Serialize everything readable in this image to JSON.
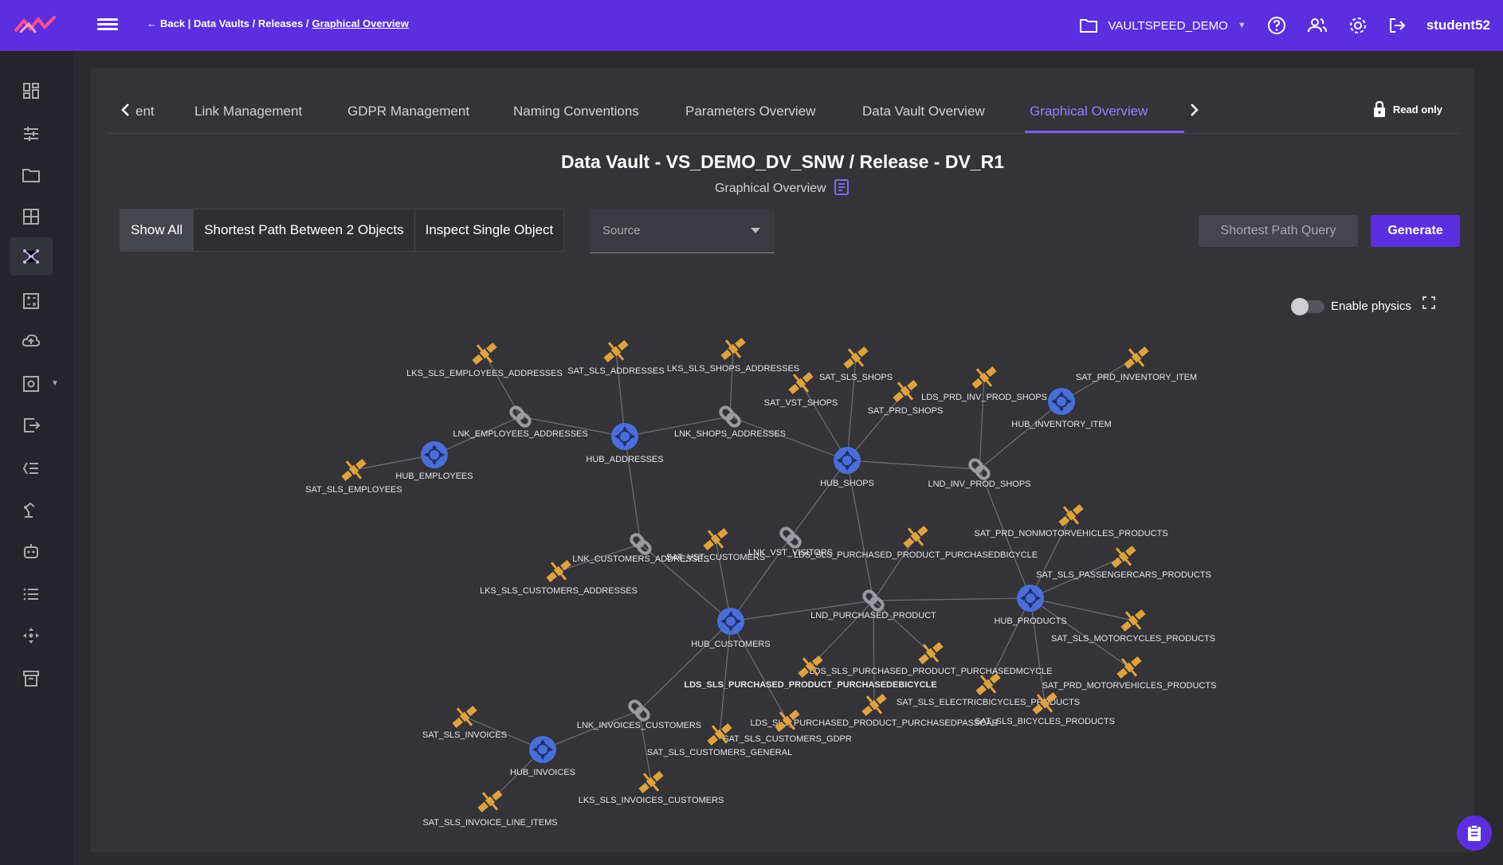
{
  "header": {
    "back_label": "Back | Data Vaults / Releases / ",
    "current_crumb": "Graphical Overview",
    "workspace": "VAULTSPEED_DEMO",
    "username": "student52"
  },
  "sidebar": {
    "items": [
      "dashboard-icon",
      "sliders-icon",
      "folder-icon",
      "grid-icon",
      "graph-icon",
      "calculator-icon",
      "cloud-upload-icon",
      "settings-box-icon",
      "export-icon",
      "list-filter-icon",
      "robot-arm-icon",
      "robot-icon",
      "list-icon",
      "move-icon",
      "archive-icon"
    ]
  },
  "tabs": {
    "items": [
      "ent",
      "Link Management",
      "GDPR Management",
      "Naming Conventions",
      "Parameters Overview",
      "Data Vault Overview",
      "Graphical Overview"
    ],
    "active": "Graphical Overview",
    "read_only": "Read only"
  },
  "main": {
    "title": "Data Vault - VS_DEMO_DV_SNW / Release - DV_R1",
    "subtitle": "Graphical Overview",
    "modes": [
      "Show All",
      "Shortest Path Between 2 Objects",
      "Inspect Single Object"
    ],
    "active_mode": "Show All",
    "source_label": "Source",
    "shortest_path_button": "Shortest Path Query",
    "generate_button": "Generate",
    "physics_label": "Enable physics",
    "physics_enabled": false
  },
  "graph": {
    "nodes": [
      {
        "id": "HUB_EMPLOYEES",
        "type": "hub"
      },
      {
        "id": "HUB_ADDRESSES",
        "type": "hub"
      },
      {
        "id": "HUB_SHOPS",
        "type": "hub"
      },
      {
        "id": "HUB_INVENTORY_ITEM",
        "type": "hub"
      },
      {
        "id": "HUB_CUSTOMERS",
        "type": "hub"
      },
      {
        "id": "HUB_PRODUCTS",
        "type": "hub"
      },
      {
        "id": "HUB_INVOICES",
        "type": "hub"
      },
      {
        "id": "LNK_EMPLOYEES_ADDRESSES",
        "type": "link"
      },
      {
        "id": "LNK_SHOPS_ADDRESSES",
        "type": "link"
      },
      {
        "id": "LND_INV_PROD_SHOPS",
        "type": "link"
      },
      {
        "id": "LNK_CUSTOMERS_ADDRESSES",
        "type": "link"
      },
      {
        "id": "LNK_VST_VISITORS",
        "type": "link"
      },
      {
        "id": "LND_PURCHASED_PRODUCT",
        "type": "link"
      },
      {
        "id": "LNK_INVOICES_CUSTOMERS",
        "type": "link"
      },
      {
        "id": "LKS_SLS_EMPLOYEES_ADDRESSES",
        "type": "sat"
      },
      {
        "id": "SAT_SLS_ADDRESSES",
        "type": "sat"
      },
      {
        "id": "LKS_SLS_SHOPS_ADDRESSES",
        "type": "sat"
      },
      {
        "id": "SAT_VST_SHOPS",
        "type": "sat"
      },
      {
        "id": "SAT_SLS_SHOPS",
        "type": "sat"
      },
      {
        "id": "SAT_PRD_SHOPS",
        "type": "sat"
      },
      {
        "id": "LDS_PRD_INV_PROD_SHOPS",
        "type": "sat"
      },
      {
        "id": "SAT_PRD_INVENTORY_ITEM",
        "type": "sat"
      },
      {
        "id": "SAT_SLS_EMPLOYEES",
        "type": "sat"
      },
      {
        "id": "SAT_VST_CUSTOMERS",
        "type": "sat"
      },
      {
        "id": "LDS_SLS_PURCHASED_PRODUCT_PURCHASEDBICYCLE",
        "type": "sat"
      },
      {
        "id": "SAT_PRD_NONMOTORVEHICLES_PRODUCTS",
        "type": "sat"
      },
      {
        "id": "SAT_SLS_PASSENGERCARS_PRODUCTS",
        "type": "sat"
      },
      {
        "id": "LKS_SLS_CUSTOMERS_ADDRESSES",
        "type": "sat"
      },
      {
        "id": "SAT_SLS_MOTORCYCLES_PRODUCTS",
        "type": "sat"
      },
      {
        "id": "LDS_SLS_PURCHASED_PRODUCT_PURCHASEDMCYCLE",
        "type": "sat"
      },
      {
        "id": "LDS_SLS_PURCHASED_PRODUCT_PURCHASEDEBICYCLE",
        "type": "sat",
        "bold": true
      },
      {
        "id": "SAT_PRD_MOTORVEHICLES_PRODUCTS",
        "type": "sat"
      },
      {
        "id": "SAT_SLS_ELECTRICBICYCLES_PRODUCTS",
        "type": "sat"
      },
      {
        "id": "SAT_SLS_INVOICES",
        "type": "sat"
      },
      {
        "id": "LDS_SLS_PURCHASED_PRODUCT_PURCHASEDPASSCAR",
        "label": "LDS_SLS_PURCHASED_PRODUCT_PURCHASEDPASSCAR",
        "type": "sat"
      },
      {
        "id": "SAT_SLS_BICYCLES_PRODUCTS",
        "type": "sat"
      },
      {
        "id": "SAT_SLS_CUSTOMERS_GDPR",
        "type": "sat"
      },
      {
        "id": "SAT_SLS_CUSTOMERS_GENERAL",
        "type": "sat"
      },
      {
        "id": "LKS_SLS_INVOICES_CUSTOMERS",
        "type": "sat"
      },
      {
        "id": "SAT_SLS_INVOICE_LINE_ITEMS",
        "type": "sat"
      }
    ],
    "edges": [
      [
        "LKS_SLS_EMPLOYEES_ADDRESSES",
        "LNK_EMPLOYEES_ADDRESSES"
      ],
      [
        "LNK_EMPLOYEES_ADDRESSES",
        "HUB_EMPLOYEES"
      ],
      [
        "LNK_EMPLOYEES_ADDRESSES",
        "HUB_ADDRESSES"
      ],
      [
        "SAT_SLS_EMPLOYEES",
        "HUB_EMPLOYEES"
      ],
      [
        "SAT_SLS_ADDRESSES",
        "HUB_ADDRESSES"
      ],
      [
        "HUB_ADDRESSES",
        "LNK_SHOPS_ADDRESSES"
      ],
      [
        "LKS_SLS_SHOPS_ADDRESSES",
        "LNK_SHOPS_ADDRESSES"
      ],
      [
        "LNK_SHOPS_ADDRESSES",
        "HUB_SHOPS"
      ],
      [
        "SAT_VST_SHOPS",
        "HUB_SHOPS"
      ],
      [
        "SAT_SLS_SHOPS",
        "HUB_SHOPS"
      ],
      [
        "SAT_PRD_SHOPS",
        "HUB_SHOPS"
      ],
      [
        "HUB_SHOPS",
        "LND_INV_PROD_SHOPS"
      ],
      [
        "LDS_PRD_INV_PROD_SHOPS",
        "LND_INV_PROD_SHOPS"
      ],
      [
        "LND_INV_PROD_SHOPS",
        "HUB_INVENTORY_ITEM"
      ],
      [
        "SAT_PRD_INVENTORY_ITEM",
        "HUB_INVENTORY_ITEM"
      ],
      [
        "LND_INV_PROD_SHOPS",
        "HUB_PRODUCTS"
      ],
      [
        "HUB_ADDRESSES",
        "LNK_CUSTOMERS_ADDRESSES"
      ],
      [
        "LKS_SLS_CUSTOMERS_ADDRESSES",
        "LNK_CUSTOMERS_ADDRESSES"
      ],
      [
        "LNK_CUSTOMERS_ADDRESSES",
        "HUB_CUSTOMERS"
      ],
      [
        "SAT_VST_CUSTOMERS",
        "HUB_CUSTOMERS"
      ],
      [
        "HUB_SHOPS",
        "LNK_VST_VISITORS"
      ],
      [
        "LNK_VST_VISITORS",
        "HUB_CUSTOMERS"
      ],
      [
        "HUB_SHOPS",
        "LND_PURCHASED_PRODUCT"
      ],
      [
        "HUB_CUSTOMERS",
        "LND_PURCHASED_PRODUCT"
      ],
      [
        "LND_PURCHASED_PRODUCT",
        "HUB_PRODUCTS"
      ],
      [
        "LDS_SLS_PURCHASED_PRODUCT_PURCHASEDBICYCLE",
        "LND_PURCHASED_PRODUCT"
      ],
      [
        "LDS_SLS_PURCHASED_PRODUCT_PURCHASEDMCYCLE",
        "LND_PURCHASED_PRODUCT"
      ],
      [
        "LDS_SLS_PURCHASED_PRODUCT_PURCHASEDEBICYCLE",
        "LND_PURCHASED_PRODUCT"
      ],
      [
        "LDS_SLS_PURCHASED_PRODUCT_PURCHASEDPASSCAR",
        "LND_PURCHASED_PRODUCT"
      ],
      [
        "SAT_PRD_NONMOTORVEHICLES_PRODUCTS",
        "HUB_PRODUCTS"
      ],
      [
        "SAT_SLS_PASSENGERCARS_PRODUCTS",
        "HUB_PRODUCTS"
      ],
      [
        "SAT_SLS_MOTORCYCLES_PRODUCTS",
        "HUB_PRODUCTS"
      ],
      [
        "SAT_PRD_MOTORVEHICLES_PRODUCTS",
        "HUB_PRODUCTS"
      ],
      [
        "SAT_SLS_ELECTRICBICYCLES_PRODUCTS",
        "HUB_PRODUCTS"
      ],
      [
        "SAT_SLS_BICYCLES_PRODUCTS",
        "HUB_PRODUCTS"
      ],
      [
        "HUB_CUSTOMERS",
        "LNK_INVOICES_CUSTOMERS"
      ],
      [
        "LNK_INVOICES_CUSTOMERS",
        "HUB_INVOICES"
      ],
      [
        "SAT_SLS_INVOICES",
        "HUB_INVOICES"
      ],
      [
        "SAT_SLS_INVOICE_LINE_ITEMS",
        "HUB_INVOICES"
      ],
      [
        "LKS_SLS_INVOICES_CUSTOMERS",
        "LNK_INVOICES_CUSTOMERS"
      ],
      [
        "SAT_SLS_CUSTOMERS_GDPR",
        "HUB_CUSTOMERS"
      ],
      [
        "SAT_SLS_CUSTOMERS_GENERAL",
        "HUB_CUSTOMERS"
      ]
    ]
  },
  "colors": {
    "accent": "#5b2ee0",
    "hub": "#4a6ed8",
    "satellite": "#e0a23c",
    "link": "#9a9aa0",
    "edge": "#6f6f76"
  }
}
